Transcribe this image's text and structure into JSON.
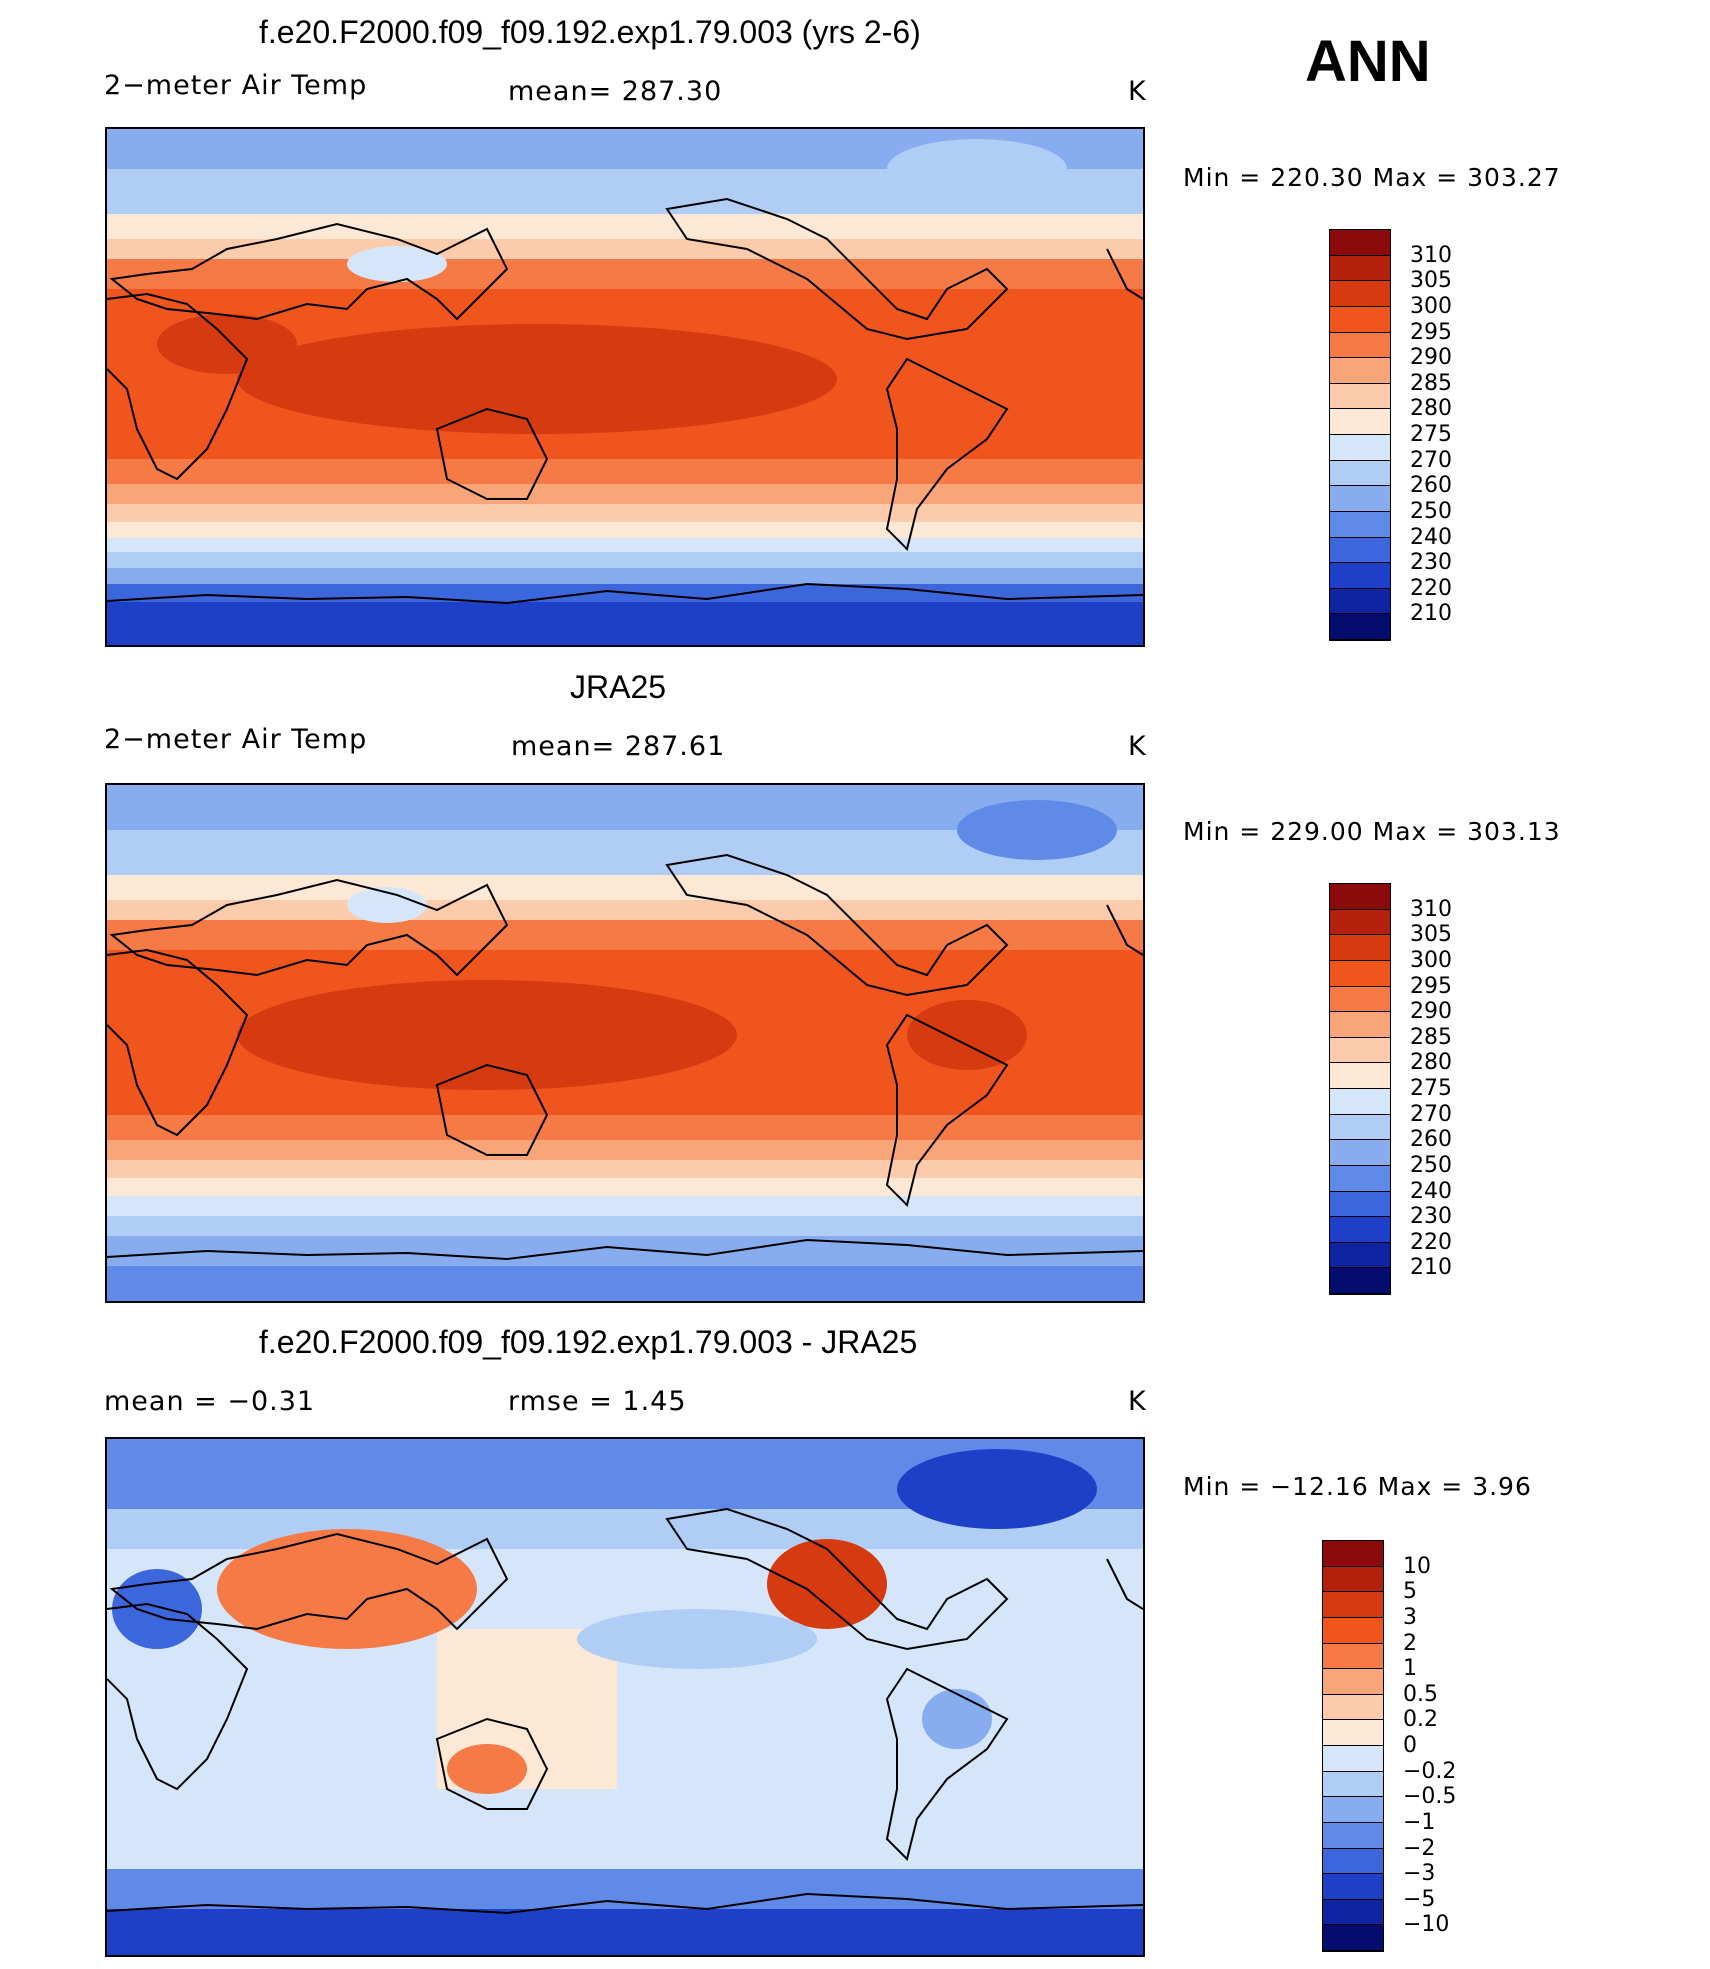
{
  "season": "ANN",
  "units": "K",
  "panels": [
    {
      "id": "model",
      "title": "f.e20.F2000.f09_f09.192.exp1.79.003 (yrs 2-6)",
      "left_label": "2−meter Air Temp",
      "center_label": "mean=  287.30",
      "right_label": "K",
      "minmax": "Min  =  220.30  Max  =  303.27",
      "colorbar": {
        "colors": [
          "#8b0a0a",
          "#b3200c",
          "#d63a10",
          "#f0551e",
          "#f57a46",
          "#f9a57a",
          "#fccbac",
          "#fde8d6",
          "#d6e6fa",
          "#b0cdf5",
          "#88acf0",
          "#5f8ae8",
          "#3c66dc",
          "#1e40c8",
          "#0f24a0",
          "#040c6e"
        ],
        "ticks": [
          "310",
          "305",
          "300",
          "295",
          "290",
          "285",
          "280",
          "275",
          "270",
          "260",
          "250",
          "240",
          "230",
          "220",
          "210"
        ]
      }
    },
    {
      "id": "obs",
      "title": "JRA25",
      "left_label": "2−meter Air Temp",
      "center_label": "mean=  287.61",
      "right_label": "K",
      "minmax": "Min  =  229.00  Max  =  303.13",
      "colorbar": {
        "colors": [
          "#8b0a0a",
          "#b3200c",
          "#d63a10",
          "#f0551e",
          "#f57a46",
          "#f9a57a",
          "#fccbac",
          "#fde8d6",
          "#d6e6fa",
          "#b0cdf5",
          "#88acf0",
          "#5f8ae8",
          "#3c66dc",
          "#1e40c8",
          "#0f24a0",
          "#040c6e"
        ],
        "ticks": [
          "310",
          "305",
          "300",
          "295",
          "290",
          "285",
          "280",
          "275",
          "270",
          "260",
          "250",
          "240",
          "230",
          "220",
          "210"
        ]
      }
    },
    {
      "id": "diff",
      "title": "f.e20.F2000.f09_f09.192.exp1.79.003 - JRA25",
      "left_label": "mean =    −0.31",
      "center_label": "rmse =     1.45",
      "right_label": "K",
      "minmax": "Min  =  −12.16  Max  =      3.96",
      "colorbar": {
        "colors": [
          "#8b0a0a",
          "#b3200c",
          "#d63a10",
          "#f0551e",
          "#f57a46",
          "#f9a57a",
          "#fccbac",
          "#fde8d6",
          "#d6e6fa",
          "#b0cdf5",
          "#88acf0",
          "#5f8ae8",
          "#3c66dc",
          "#1e40c8",
          "#0f24a0",
          "#040c6e"
        ],
        "ticks": [
          "10",
          "5",
          "3",
          "2",
          "1",
          "0.5",
          "0.2",
          "0",
          "−0.2",
          "−0.5",
          "−1",
          "−2",
          "−3",
          "−5",
          "−10"
        ]
      }
    }
  ]
}
